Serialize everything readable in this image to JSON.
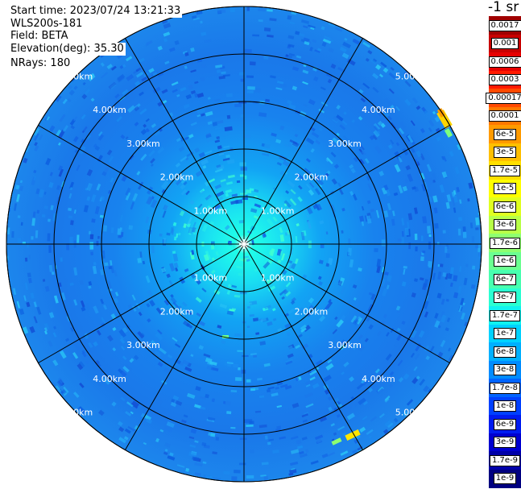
{
  "header": {
    "start_time": "Start time: 2023/07/24 13:21:33",
    "instrument": "WLS200s-181",
    "field": "Field: BETA",
    "elevation": "Elevation(deg): 35.30",
    "nrays": "NRays: 180"
  },
  "colorbar": {
    "title": "-1 sr",
    "labels": [
      "0.0017",
      "0.001",
      "0.0006",
      "0.0003",
      "0.00017",
      "0.0001",
      "6e-5",
      "3e-5",
      "1.7e-5",
      "1e-5",
      "6e-6",
      "3e-6",
      "1.7e-6",
      "1e-6",
      "6e-7",
      "3e-7",
      "1.7e-7",
      "1e-7",
      "6e-8",
      "3e-8",
      "1.7e-8",
      "1e-8",
      "6e-9",
      "3e-9",
      "1.7e-9",
      "1e-9"
    ],
    "colors": [
      "#a00000",
      "#c80000",
      "#e60000",
      "#ff1a00",
      "#ff4a00",
      "#ff7800",
      "#ff9a00",
      "#ffbf00",
      "#ffe000",
      "#ffff00",
      "#e0ff20",
      "#b8ff48",
      "#8eff70",
      "#6bff90",
      "#48ffb0",
      "#2bffd2",
      "#10f2f0",
      "#00d2ff",
      "#00b0ff",
      "#008cff",
      "#0064ff",
      "#0040ff",
      "#001cf0",
      "#0000d0",
      "#0000a8",
      "#000080"
    ]
  },
  "range_rings": {
    "labels": [
      "1.00km",
      "2.00km",
      "3.00km",
      "4.00km",
      "5.00km"
    ]
  }
}
